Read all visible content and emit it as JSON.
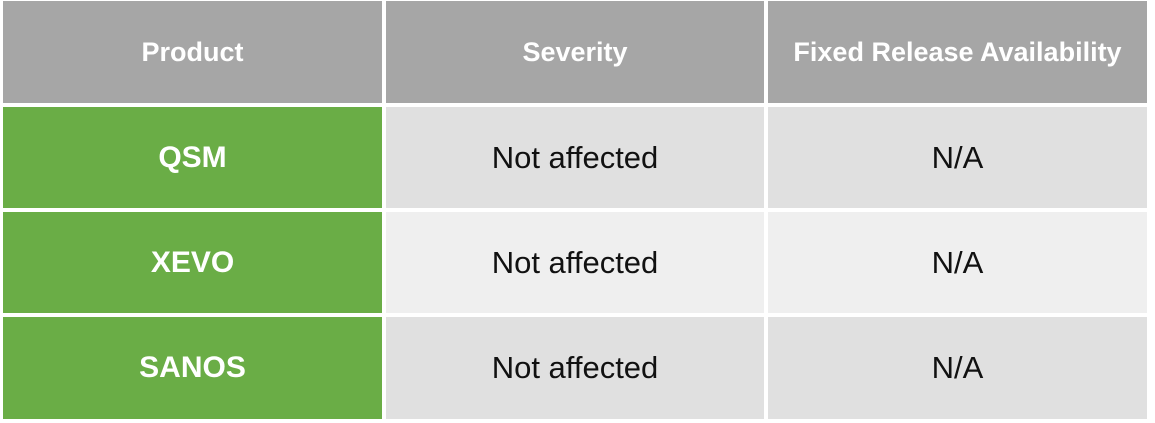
{
  "table": {
    "headers": [
      "Product",
      "Severity",
      "Fixed Release Availability"
    ],
    "rows": [
      {
        "product": "QSM",
        "severity": "Not affected",
        "fixed_release": "N/A"
      },
      {
        "product": "XEVO",
        "severity": "Not affected",
        "fixed_release": "N/A"
      },
      {
        "product": "SANOS",
        "severity": "Not affected",
        "fixed_release": "N/A"
      }
    ]
  },
  "colors": {
    "header_bg": "#a6a6a6",
    "product_bg": "#6aad46",
    "row_dark_bg": "#e0e0e0",
    "row_light_bg": "#efefef"
  }
}
